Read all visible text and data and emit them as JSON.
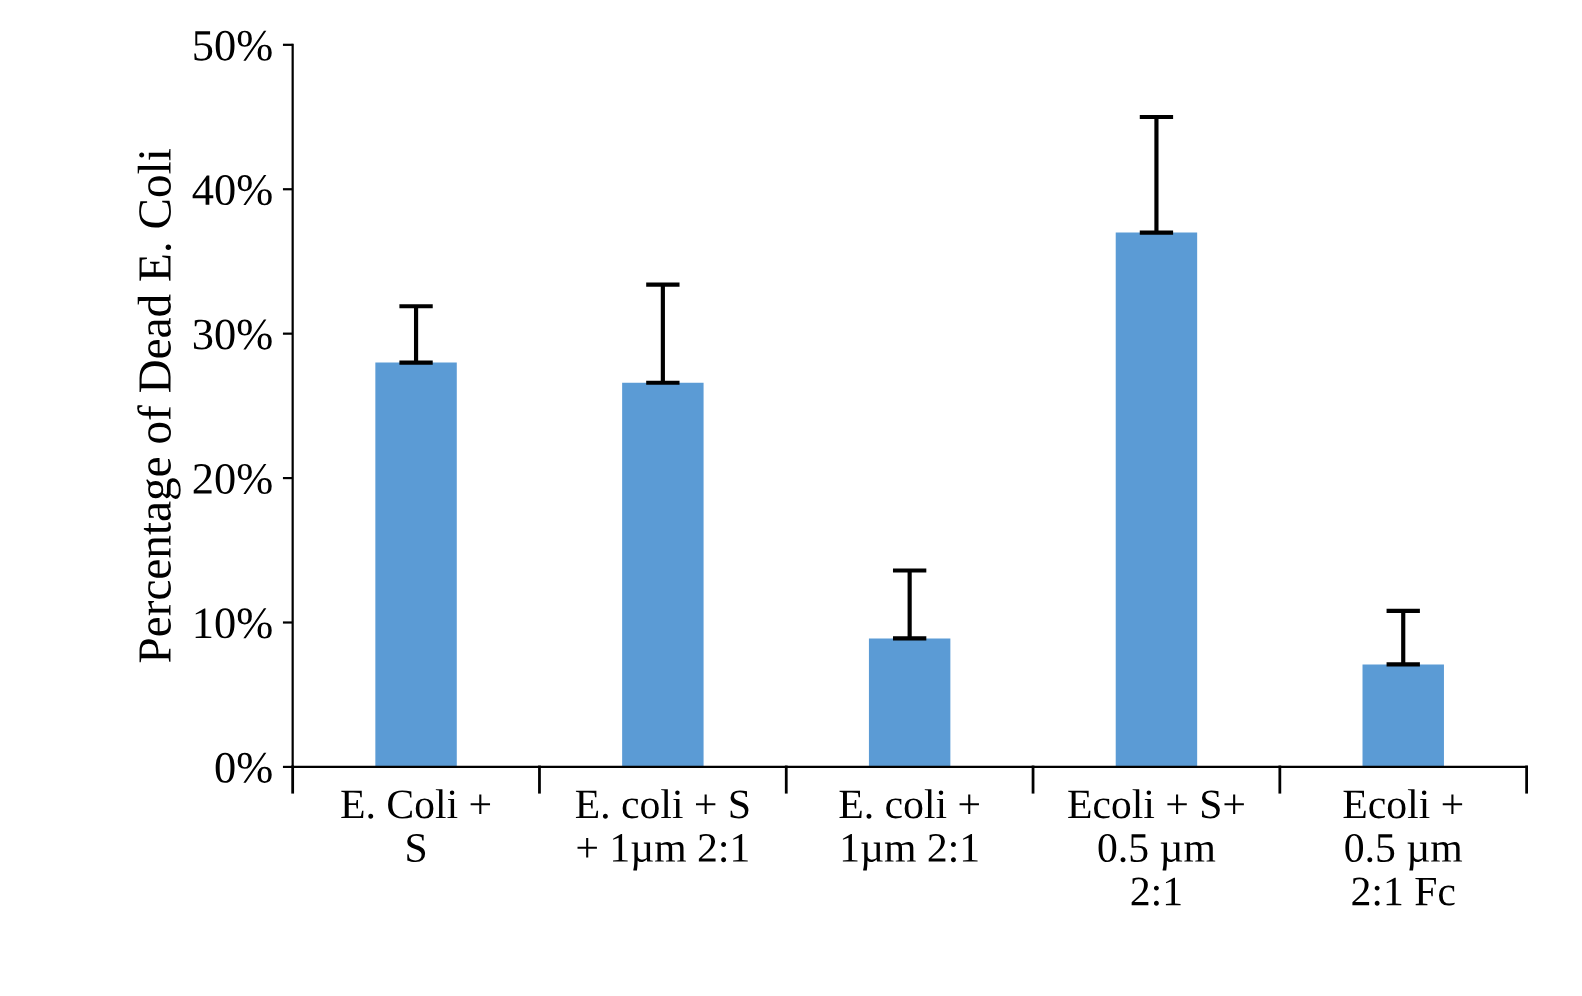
{
  "chart_data": {
    "type": "bar",
    "categories": [
      "E. Coli +\nS",
      "E. coli + S\n+ 1µm 2:1",
      "E. coli +\n1µm 2:1",
      "Ecoli + S+\n0.5 µm\n2:1",
      "Ecoli +\n0.5 µm\n2:1 Fc"
    ],
    "values": [
      28.0,
      26.6,
      8.9,
      37.0,
      7.1
    ],
    "errors": [
      [
        28.0,
        31.9
      ],
      [
        26.6,
        33.4
      ],
      [
        8.9,
        13.6
      ],
      [
        37.0,
        45.0
      ],
      [
        7.1,
        10.8
      ]
    ],
    "color": "#5b9bd5",
    "ylabel": "Percentage of Dead E. Coli",
    "ylim": [
      0,
      50
    ],
    "yticks": [
      {
        "value": 0,
        "label": "0%"
      },
      {
        "value": 10,
        "label": "10%"
      },
      {
        "value": 20,
        "label": "20%"
      },
      {
        "value": 30,
        "label": "30%"
      },
      {
        "value": 40,
        "label": "40%"
      },
      {
        "value": 50,
        "label": "50%"
      }
    ],
    "grid": false,
    "legend": false
  }
}
